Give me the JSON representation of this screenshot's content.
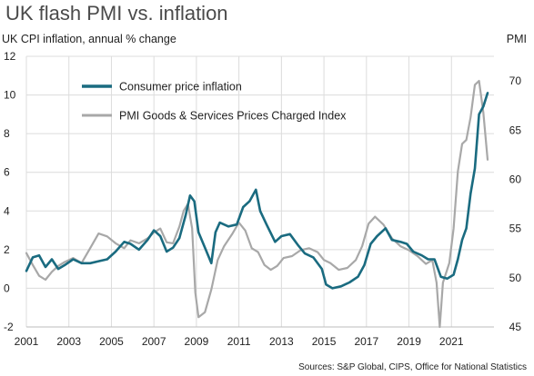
{
  "header": {
    "title": "UK flash PMI vs. inflation",
    "left_axis_label": "UK CPI inflation, annual % change",
    "right_axis_label": "PMI",
    "source": "Sources: S&P Global, CIPS, Office for National Statistics"
  },
  "colors": {
    "cpi": "#1a6b80",
    "pmi": "#a8a8a8",
    "grid": "#dcdcdc"
  },
  "chart_data": {
    "type": "line",
    "x_ticks": [
      "2001",
      "2003",
      "2005",
      "2007",
      "2009",
      "2011",
      "2013",
      "2015",
      "2017",
      "2019",
      "2021"
    ],
    "xlim": [
      2001,
      2023
    ],
    "left_axis": {
      "ylim": [
        -2,
        12
      ],
      "ticks": [
        "-2",
        "0",
        "2",
        "4",
        "6",
        "8",
        "10",
        "12"
      ]
    },
    "right_axis": {
      "ylim": [
        45,
        72.5
      ],
      "ticks": [
        "45",
        "50",
        "55",
        "60",
        "65",
        "70"
      ]
    },
    "legend": {
      "placement": "top-left"
    },
    "series": [
      {
        "name": "Consumer price inflation",
        "axis": "left",
        "x": [
          2001.0,
          2001.3,
          2001.6,
          2001.9,
          2002.2,
          2002.5,
          2002.8,
          2003.2,
          2003.6,
          2004.0,
          2004.4,
          2004.8,
          2005.2,
          2005.6,
          2005.9,
          2006.3,
          2006.7,
          2007.0,
          2007.3,
          2007.6,
          2007.9,
          2008.2,
          2008.5,
          2008.7,
          2008.9,
          2009.1,
          2009.4,
          2009.7,
          2009.9,
          2010.1,
          2010.5,
          2010.9,
          2011.2,
          2011.5,
          2011.8,
          2012.0,
          2012.3,
          2012.7,
          2013.0,
          2013.4,
          2013.8,
          2014.1,
          2014.5,
          2014.9,
          2015.1,
          2015.4,
          2015.8,
          2016.2,
          2016.6,
          2016.9,
          2017.2,
          2017.5,
          2017.9,
          2018.2,
          2018.6,
          2018.9,
          2019.2,
          2019.6,
          2019.9,
          2020.2,
          2020.5,
          2020.8,
          2021.1,
          2021.3,
          2021.5,
          2021.7,
          2021.9,
          2022.1,
          2022.3,
          2022.5,
          2022.7
        ],
        "values": [
          0.9,
          1.6,
          1.7,
          1.1,
          1.5,
          1.0,
          1.2,
          1.5,
          1.3,
          1.3,
          1.4,
          1.5,
          1.9,
          2.4,
          2.3,
          2.0,
          2.5,
          3.0,
          2.7,
          1.9,
          2.1,
          2.6,
          3.8,
          4.8,
          4.5,
          2.9,
          2.1,
          1.3,
          2.9,
          3.4,
          3.2,
          3.3,
          4.2,
          4.5,
          5.1,
          4.0,
          3.3,
          2.4,
          2.7,
          2.8,
          2.2,
          1.8,
          1.6,
          1.0,
          0.2,
          0.0,
          0.1,
          0.3,
          0.6,
          1.2,
          2.3,
          2.7,
          3.1,
          2.5,
          2.4,
          2.3,
          1.9,
          1.7,
          1.5,
          1.5,
          0.6,
          0.5,
          0.7,
          1.5,
          2.5,
          3.1,
          4.9,
          6.2,
          9.0,
          9.4,
          10.1
        ]
      },
      {
        "name": "PMI Goods & Services Prices Charged Index",
        "axis": "right",
        "x": [
          2001.0,
          2001.3,
          2001.6,
          2001.9,
          2002.2,
          2002.5,
          2002.8,
          2003.2,
          2003.6,
          2004.0,
          2004.4,
          2004.8,
          2005.2,
          2005.6,
          2005.9,
          2006.3,
          2006.7,
          2007.0,
          2007.3,
          2007.6,
          2007.9,
          2008.2,
          2008.4,
          2008.6,
          2008.8,
          2008.95,
          2009.1,
          2009.4,
          2009.7,
          2010.0,
          2010.3,
          2010.7,
          2011.0,
          2011.3,
          2011.6,
          2011.9,
          2012.2,
          2012.5,
          2012.8,
          2013.1,
          2013.5,
          2013.9,
          2014.3,
          2014.7,
          2015.0,
          2015.3,
          2015.7,
          2016.1,
          2016.5,
          2016.8,
          2017.1,
          2017.4,
          2017.8,
          2018.2,
          2018.6,
          2019.0,
          2019.4,
          2019.8,
          2020.1,
          2020.3,
          2020.45,
          2020.6,
          2020.9,
          2021.1,
          2021.3,
          2021.5,
          2021.7,
          2021.9,
          2022.1,
          2022.3,
          2022.5,
          2022.7
        ],
        "values": [
          52.5,
          51.3,
          50.2,
          49.8,
          50.6,
          51.2,
          51.6,
          52.0,
          51.5,
          53.0,
          54.5,
          54.2,
          53.5,
          53.0,
          53.8,
          53.5,
          54.0,
          54.6,
          55.0,
          53.6,
          53.5,
          55.2,
          56.8,
          57.5,
          55.0,
          48.5,
          46.0,
          46.5,
          48.8,
          51.8,
          53.2,
          54.5,
          55.6,
          54.8,
          53.0,
          52.6,
          51.3,
          50.8,
          51.2,
          52.0,
          52.2,
          52.8,
          53.0,
          52.6,
          51.8,
          51.5,
          50.8,
          51.0,
          51.8,
          53.2,
          55.5,
          56.2,
          55.4,
          54.0,
          53.2,
          52.8,
          52.2,
          51.4,
          51.8,
          49.5,
          45.0,
          49.5,
          51.5,
          55.0,
          60.8,
          63.6,
          64.0,
          66.3,
          69.6,
          70.0,
          66.8,
          62.0
        ]
      }
    ]
  }
}
